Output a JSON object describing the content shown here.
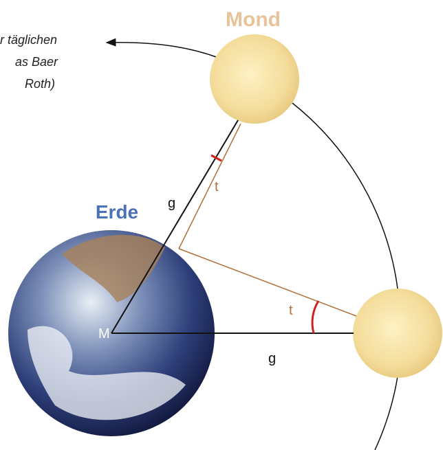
{
  "caption": [
    "r täglichen",
    "as Baer",
    "Roth)"
  ],
  "labels": {
    "moon": "Mond",
    "earth": "Erde",
    "center": "M",
    "g_upper": "g",
    "g_lower": "g",
    "t_upper": "t",
    "t_lower": "t"
  }
}
